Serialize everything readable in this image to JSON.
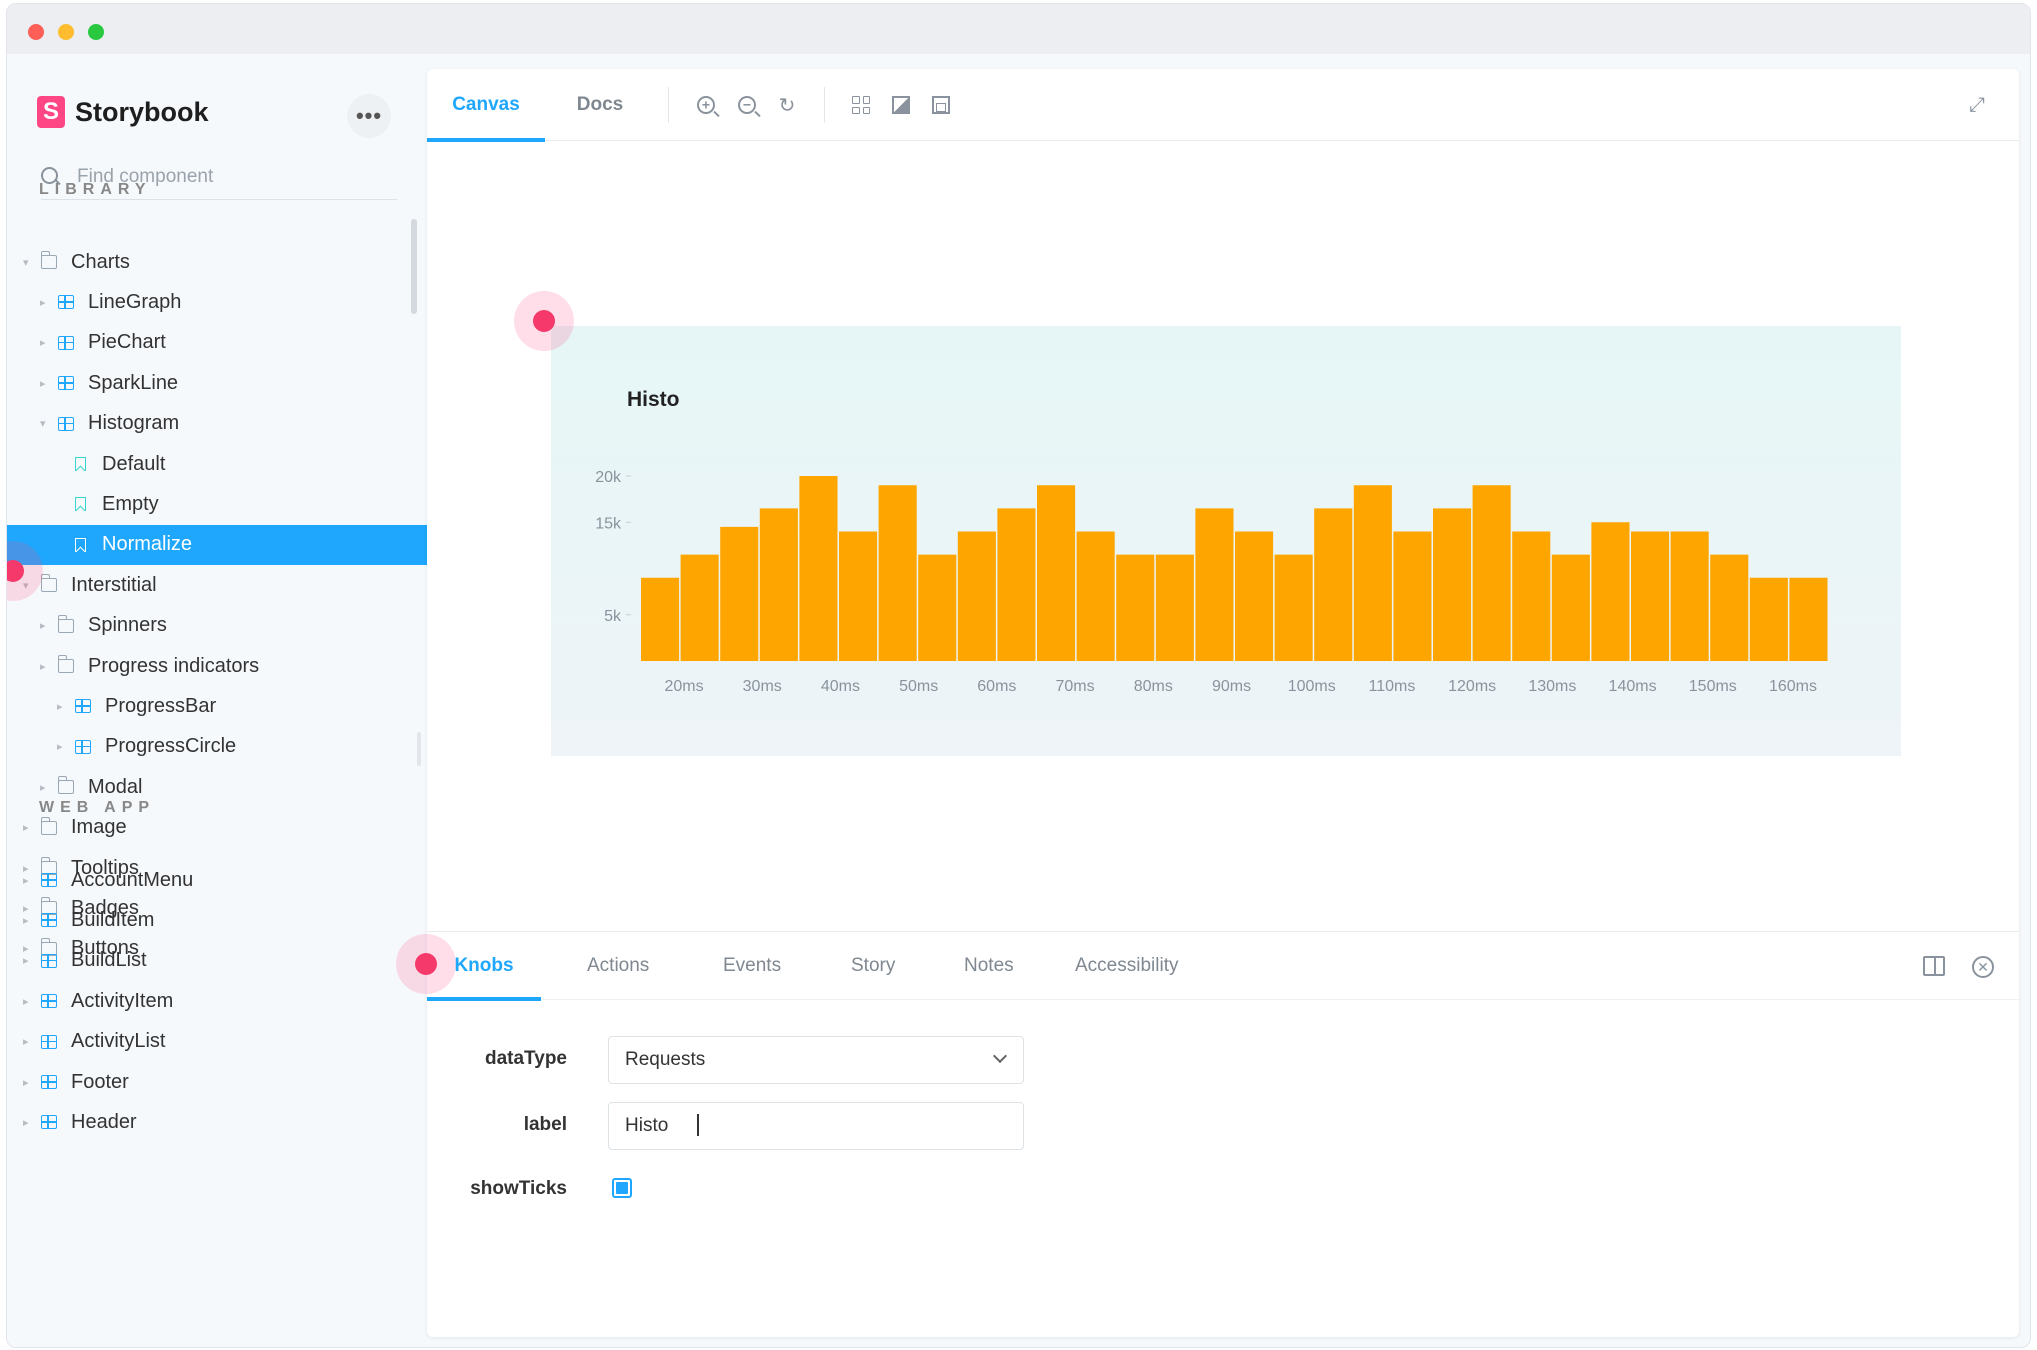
{
  "sidebar": {
    "brand": "Storybook",
    "more_label": "•••",
    "search_placeholder": "Find component",
    "sections": [
      {
        "label": "LIBRARY",
        "items": [
          {
            "label": "Charts",
            "type": "folder",
            "depth": 0,
            "expanded": true
          },
          {
            "label": "LineGraph",
            "type": "component",
            "depth": 1
          },
          {
            "label": "PieChart",
            "type": "component",
            "depth": 1
          },
          {
            "label": "SparkLine",
            "type": "component",
            "depth": 1
          },
          {
            "label": "Histogram",
            "type": "component",
            "depth": 1,
            "expanded": true
          },
          {
            "label": "Default",
            "type": "story",
            "depth": 2
          },
          {
            "label": "Empty",
            "type": "story",
            "depth": 2
          },
          {
            "label": "Normalize",
            "type": "story",
            "depth": 2,
            "selected": true
          },
          {
            "label": "Interstitial",
            "type": "folder",
            "depth": 0,
            "expanded": true
          },
          {
            "label": "Spinners",
            "type": "folder",
            "depth": 1
          },
          {
            "label": "Progress indicators",
            "type": "folder",
            "depth": 1
          },
          {
            "label": "ProgressBar",
            "type": "component",
            "depth": 2
          },
          {
            "label": "ProgressCircle",
            "type": "component",
            "depth": 2
          },
          {
            "label": "Modal",
            "type": "folder",
            "depth": 1
          },
          {
            "label": "Image",
            "type": "folder",
            "depth": 0
          },
          {
            "label": "Tooltips",
            "type": "folder",
            "depth": 0
          },
          {
            "label": "Badges",
            "type": "folder",
            "depth": 0
          },
          {
            "label": "Buttons",
            "type": "folder",
            "depth": 0
          }
        ]
      },
      {
        "label": "WEB APP",
        "items": [
          {
            "label": "AccountMenu",
            "type": "component",
            "depth": 0
          },
          {
            "label": "BuildItem",
            "type": "component",
            "depth": 0
          },
          {
            "label": "BuildList",
            "type": "component",
            "depth": 0
          },
          {
            "label": "ActivityItem",
            "type": "component",
            "depth": 0
          },
          {
            "label": "ActivityList",
            "type": "component",
            "depth": 0
          },
          {
            "label": "Footer",
            "type": "component",
            "depth": 0
          },
          {
            "label": "Header",
            "type": "component",
            "depth": 0
          }
        ]
      }
    ]
  },
  "toolbar": {
    "tabs": [
      "Canvas",
      "Docs"
    ],
    "active_tab": "Canvas"
  },
  "chart_data": {
    "type": "bar",
    "title": "Histo",
    "xlabel": "",
    "ylabel": "",
    "y_ticks": [
      "5k",
      "15k",
      "20k"
    ],
    "x_ticks": [
      "20ms",
      "30ms",
      "40ms",
      "50ms",
      "60ms",
      "70ms",
      "80ms",
      "90ms",
      "100ms",
      "110ms",
      "120ms",
      "130ms",
      "140ms",
      "150ms",
      "160ms"
    ],
    "ylim": [
      0,
      20000
    ],
    "values": [
      9000,
      11500,
      14500,
      16500,
      20000,
      14000,
      19000,
      11500,
      14000,
      16500,
      19000,
      14000,
      11500,
      11500,
      16500,
      14000,
      11500,
      16500,
      19000,
      14000,
      16500,
      19000,
      14000,
      11500,
      15000,
      14000,
      14000,
      11500,
      9000,
      9000
    ],
    "bar_color": "#ffa500",
    "grid": false
  },
  "addons": {
    "tabs": [
      "Knobs",
      "Actions",
      "Events",
      "Story",
      "Notes",
      "Accessibility"
    ],
    "active_tab": "Knobs",
    "knobs": {
      "dataType_label": "dataType",
      "dataType_value": "Requests",
      "label_label": "label",
      "label_value": "Histo",
      "showTicks_label": "showTicks",
      "showTicks_value": true
    }
  },
  "colors": {
    "accent": "#1ea7fd",
    "brand": "#ff4785",
    "highlight_dot": "#f53a6b"
  }
}
